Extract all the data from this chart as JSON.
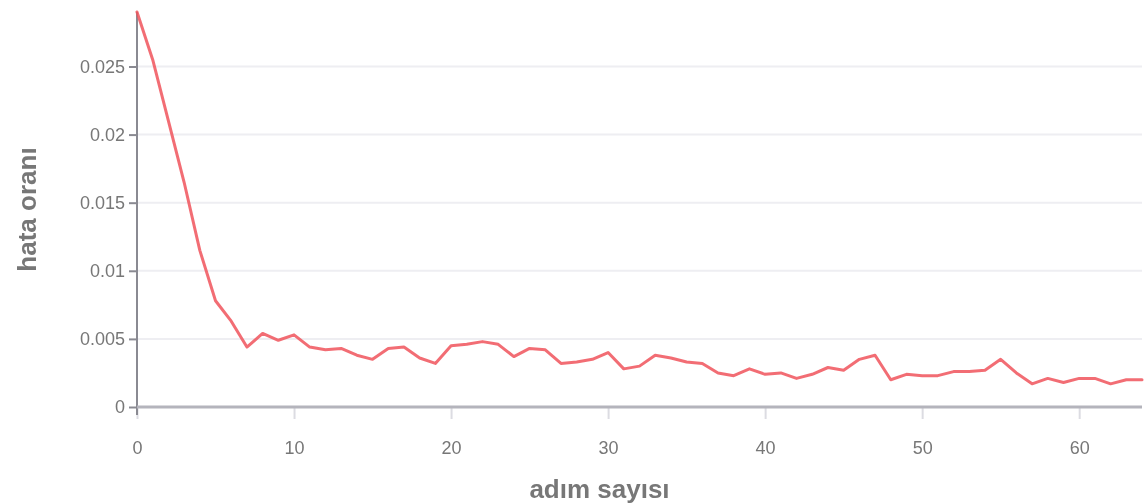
{
  "chart_data": {
    "type": "line",
    "xlabel": "adım sayısı",
    "ylabel": "hata oranı",
    "x": [
      0,
      1,
      2,
      3,
      4,
      5,
      6,
      7,
      8,
      9,
      10,
      11,
      12,
      13,
      14,
      15,
      16,
      17,
      18,
      19,
      20,
      21,
      22,
      23,
      24,
      25,
      26,
      27,
      28,
      29,
      30,
      31,
      32,
      33,
      34,
      35,
      36,
      37,
      38,
      39,
      40,
      41,
      42,
      43,
      44,
      45,
      46,
      47,
      48,
      49,
      50,
      51,
      52,
      53,
      54,
      55,
      56,
      57,
      58,
      59,
      60,
      61,
      62,
      63,
      64
    ],
    "series": [
      {
        "color": "#f0545c",
        "values": [
          0.029,
          0.0255,
          0.021,
          0.0165,
          0.0115,
          0.0078,
          0.0063,
          0.0044,
          0.0054,
          0.0049,
          0.0053,
          0.0044,
          0.0042,
          0.0043,
          0.0038,
          0.0035,
          0.0043,
          0.0044,
          0.0036,
          0.0032,
          0.0045,
          0.0046,
          0.0048,
          0.0046,
          0.0037,
          0.0043,
          0.0042,
          0.0032,
          0.0033,
          0.0035,
          0.004,
          0.0028,
          0.003,
          0.0038,
          0.0036,
          0.0033,
          0.0032,
          0.0025,
          0.0023,
          0.0028,
          0.0024,
          0.0025,
          0.0021,
          0.0024,
          0.0029,
          0.0027,
          0.0035,
          0.0038,
          0.002,
          0.0024,
          0.0023,
          0.0023,
          0.0026,
          0.0026,
          0.0027,
          0.0035,
          0.0025,
          0.0017,
          0.0021,
          0.0018,
          0.0021,
          0.0021,
          0.0017,
          0.002,
          0.002
        ]
      }
    ],
    "xlim": [
      0,
      64
    ],
    "xticks": [
      0,
      10,
      20,
      30,
      40,
      50,
      60
    ],
    "ylim": [
      0,
      0.029
    ],
    "yticks": [
      0,
      0.005,
      0.01,
      0.015,
      0.02,
      0.025
    ],
    "grid": "y",
    "line_style": "solid"
  }
}
